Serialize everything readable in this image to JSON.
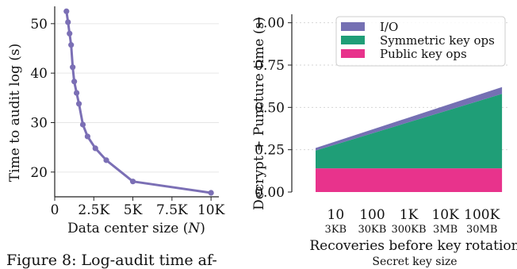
{
  "chart_data": [
    {
      "type": "line",
      "xlabel": "Data center size (N)",
      "ylabel": "Time to audit log (s)",
      "xlim": [
        0,
        10500
      ],
      "ylim": [
        15,
        53.5
      ],
      "x_ticks": [
        0,
        2500,
        5000,
        7500,
        10000
      ],
      "x_tick_labels": [
        "0",
        "2.5K",
        "5K",
        "7.5K",
        "10K"
      ],
      "y_ticks": [
        20,
        30,
        40,
        50
      ],
      "y_tick_labels": [
        "20",
        "30",
        "40",
        "50"
      ],
      "grid": "horizontal",
      "color": "#7b6fb5",
      "series": [
        {
          "x": [
            750,
            850,
            950,
            1050,
            1150,
            1250,
            1400,
            1550,
            1800,
            2100,
            2600,
            3300,
            5000,
            10000
          ],
          "y": [
            52.5,
            50.3,
            48.0,
            45.7,
            41.2,
            38.3,
            36.0,
            33.8,
            29.6,
            27.2,
            24.8,
            22.4,
            18.1,
            15.8
          ]
        }
      ]
    },
    {
      "type": "area",
      "stacked": true,
      "ylabel": "Decrypt + Puncture time (s)",
      "xlabel": "Recoveries before key rotation",
      "xlabel2": "Secret key size",
      "categories": [
        "10",
        "100",
        "1K",
        "10K",
        "100K"
      ],
      "categories2": [
        "3KB",
        "30KB",
        "300KB",
        "3MB",
        "30MB"
      ],
      "x": [
        0,
        1,
        2,
        3,
        4
      ],
      "ylim": [
        0,
        1.05
      ],
      "y_ticks": [
        0,
        0.25,
        0.5,
        0.75,
        1.0
      ],
      "y_tick_labels": [
        "0.00",
        "0.25",
        "0.50",
        "0.75",
        "1.00"
      ],
      "grid": "horizontal-dotted",
      "legend_position": "top-right",
      "series": [
        {
          "name": "Public key ops",
          "color": "#e8338c",
          "x": [
            -0.55,
            4.55
          ],
          "values": [
            0.14,
            0.14
          ]
        },
        {
          "name": "Symmetric key ops",
          "color": "#1f9e77",
          "x": [
            -0.55,
            4.55
          ],
          "values": [
            0.105,
            0.44
          ]
        },
        {
          "name": "I/O",
          "color": "#7570b3",
          "x": [
            -0.55,
            4.55
          ],
          "values": [
            0.015,
            0.04
          ]
        }
      ],
      "legend_order": [
        "I/O",
        "Symmetric key ops",
        "Public key ops"
      ]
    }
  ],
  "caption": {
    "text": "Figure 8: Log-audit time af-"
  }
}
